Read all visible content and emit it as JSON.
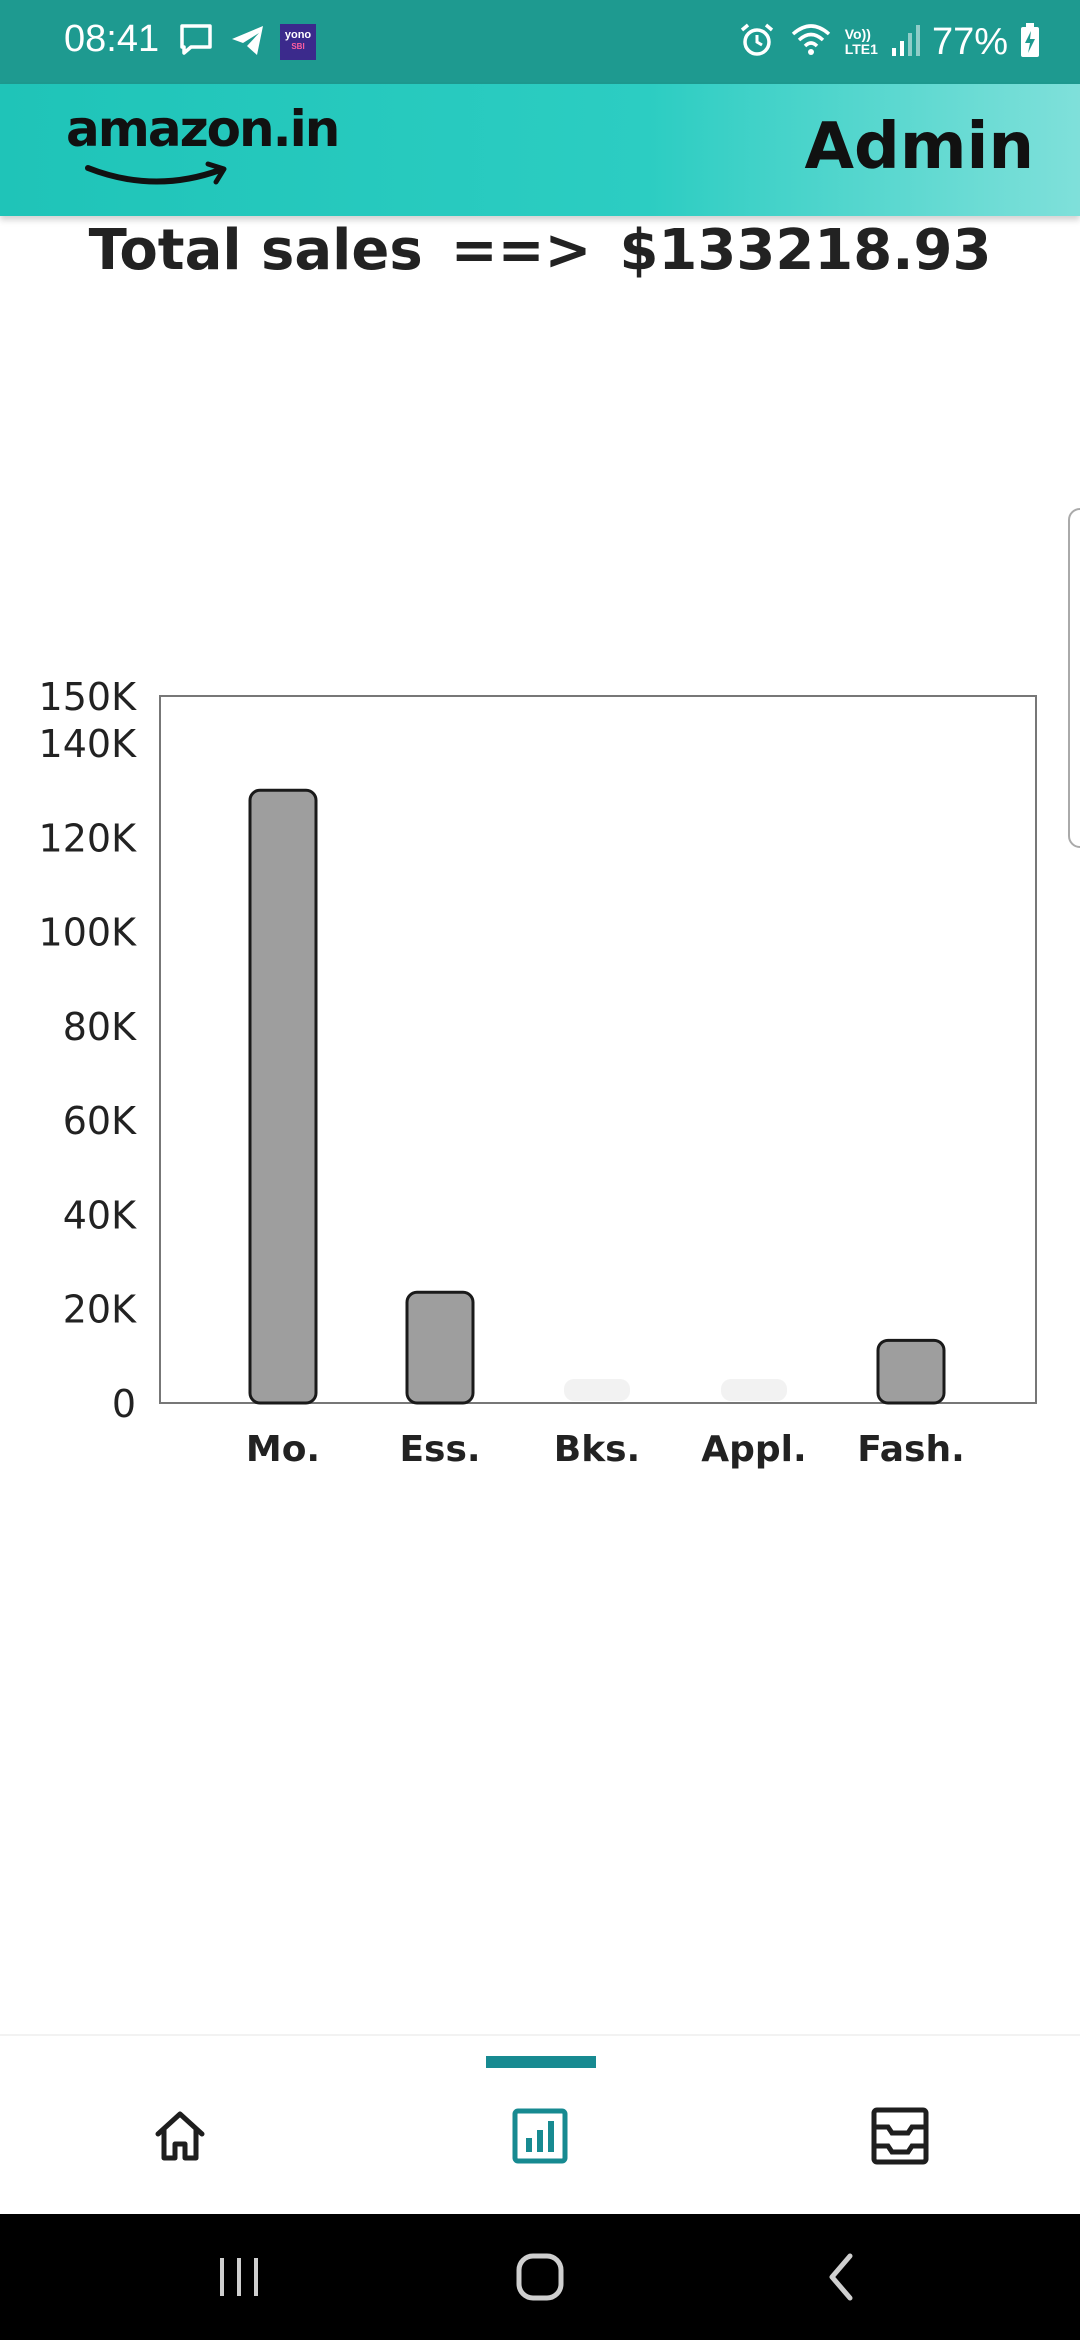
{
  "status_bar": {
    "time": "08:41",
    "battery": "77%",
    "left_icons": [
      "message-icon",
      "telegram-icon",
      "yono-sbi-icon"
    ],
    "yono_badge": {
      "line1": "yono",
      "line2": "SBI"
    },
    "right_icons": [
      "alarm-icon",
      "wifi-icon",
      "volte-icon",
      "signal-icon",
      "battery-charging-icon"
    ],
    "volte_text": {
      "top": "Vo))",
      "bottom": "LTE1"
    }
  },
  "header": {
    "brand": "amazon.in",
    "title": "Admin"
  },
  "summary": {
    "label": "Total sales",
    "arrow": "==>",
    "value": "$133218.93"
  },
  "chart_data": {
    "type": "bar",
    "categories": [
      "Mo.",
      "Ess.",
      "Bks.",
      "Appl.",
      "Fash."
    ],
    "values": [
      130000,
      23500,
      0,
      0,
      13300
    ],
    "ylim": [
      0,
      150000
    ],
    "yticks": [
      0,
      20000,
      40000,
      60000,
      80000,
      100000,
      120000,
      140000,
      150000
    ],
    "ytick_labels": [
      "0",
      "20K",
      "40K",
      "60K",
      "80K",
      "100K",
      "120K",
      "140K",
      "150K"
    ],
    "grid": false,
    "bar_color": "#9e9e9e",
    "empty_bar_color": "#f2f2f2",
    "xlabel": "",
    "ylabel": ""
  },
  "bottom_nav": {
    "items": [
      {
        "name": "home",
        "icon": "home-icon",
        "active": false
      },
      {
        "name": "analytics",
        "icon": "analytics-icon",
        "active": true
      },
      {
        "name": "orders",
        "icon": "inbox-icon",
        "active": false
      }
    ],
    "active_color": "#178a91"
  },
  "system_nav": [
    "recent-apps-icon",
    "home-circle-icon",
    "back-icon"
  ]
}
